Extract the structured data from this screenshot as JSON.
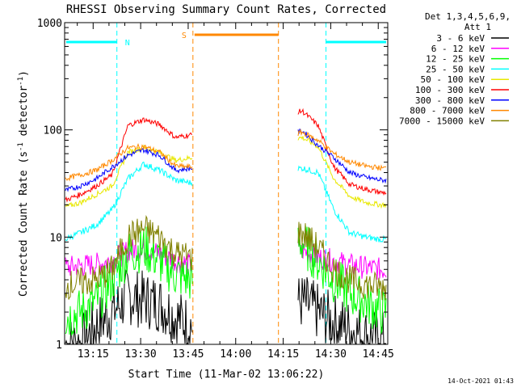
{
  "chart_data": {
    "type": "line",
    "title": "RHESSI Observing Summary Count Rates, Corrected",
    "xlabel": "Start Time (11-Mar-02 13:06:22)",
    "ylabel": "Corrected Count Rate (s⁻¹ detector⁻¹)",
    "ylabel_base": "Corrected Count Rate (s",
    "ylabel_mid": " detector",
    "ylabel_end": ")",
    "ylabel_sup": "-1",
    "yscale": "log",
    "xlim_min": [
      786,
      888
    ],
    "ylim": [
      1,
      1000
    ],
    "x_ticks": [
      {
        "label": "13:15",
        "min": 795
      },
      {
        "label": "13:30",
        "min": 810
      },
      {
        "label": "13:45",
        "min": 825
      },
      {
        "label": "14:00",
        "min": 840
      },
      {
        "label": "14:15",
        "min": 855
      },
      {
        "label": "14:30",
        "min": 870
      },
      {
        "label": "14:45",
        "min": 885
      }
    ],
    "y_ticks": [
      {
        "label": "1",
        "value": 1
      },
      {
        "label": "10",
        "value": 10
      },
      {
        "label": "100",
        "value": 100
      },
      {
        "label": "1000",
        "value": 1000
      }
    ],
    "legend_header": [
      "Det 1,3,4,5,6,9,",
      "Att 1"
    ],
    "series": [
      {
        "name": "3 - 6 keV",
        "color": "#000000",
        "x": [
          786,
          791,
          796,
          801,
          806,
          811,
          816,
          821,
          826,
          861,
          866,
          871,
          876,
          881,
          886
        ],
        "values": [
          1.0,
          1.0,
          1.5,
          2.0,
          2.8,
          2.6,
          2.4,
          1.8,
          1.5,
          2.5,
          2.0,
          1.6,
          1.4,
          1.2,
          1.1
        ]
      },
      {
        "name": "6 - 12 keV",
        "color": "#ff00ff",
        "x": [
          786,
          791,
          796,
          801,
          806,
          811,
          816,
          821,
          826,
          861,
          866,
          871,
          876,
          881,
          886
        ],
        "values": [
          5.2,
          5.4,
          5.6,
          6.0,
          7.5,
          7.8,
          7.0,
          6.0,
          5.5,
          7.5,
          6.5,
          6.0,
          5.5,
          5.2,
          5.0
        ]
      },
      {
        "name": "12 - 25 keV",
        "color": "#00ff00",
        "x": [
          786,
          791,
          796,
          801,
          806,
          811,
          816,
          821,
          826,
          861,
          866,
          871,
          876,
          881,
          886
        ],
        "values": [
          1.8,
          2.0,
          2.5,
          4.0,
          7.0,
          8.0,
          6.0,
          4.5,
          4.0,
          9.0,
          6.0,
          4.0,
          3.0,
          2.5,
          2.0
        ]
      },
      {
        "name": "25 - 50 keV",
        "color": "#00ffff",
        "x": [
          786,
          791,
          796,
          801,
          806,
          811,
          816,
          821,
          826,
          861,
          866,
          871,
          876,
          881,
          886
        ],
        "values": [
          9.5,
          11,
          13,
          18,
          35,
          48,
          42,
          34,
          32,
          44,
          40,
          18,
          11,
          10,
          9.5
        ]
      },
      {
        "name": "50 - 100 keV",
        "color": "#e8e800",
        "x": [
          786,
          791,
          796,
          801,
          806,
          811,
          816,
          821,
          826,
          861,
          866,
          871,
          876,
          881,
          886
        ],
        "values": [
          19,
          21,
          25,
          30,
          62,
          68,
          62,
          52,
          55,
          85,
          70,
          35,
          24,
          21,
          20
        ]
      },
      {
        "name": "100 - 300 keV",
        "color": "#ff0000",
        "x": [
          786,
          791,
          796,
          801,
          806,
          811,
          816,
          821,
          826,
          861,
          866,
          871,
          876,
          881,
          886
        ],
        "values": [
          22,
          25,
          30,
          38,
          110,
          125,
          112,
          85,
          90,
          150,
          110,
          45,
          31,
          28,
          26
        ]
      },
      {
        "name": "300 - 800 keV",
        "color": "#0000ff",
        "x": [
          786,
          791,
          796,
          801,
          806,
          811,
          816,
          821,
          826,
          861,
          866,
          871,
          876,
          881,
          886
        ],
        "values": [
          27,
          30,
          35,
          45,
          58,
          65,
          58,
          42,
          44,
          98,
          72,
          55,
          40,
          36,
          34
        ]
      },
      {
        "name": "800 - 7000 keV",
        "color": "#ff8800",
        "x": [
          786,
          791,
          796,
          801,
          806,
          811,
          816,
          821,
          826,
          861,
          866,
          871,
          876,
          881,
          886
        ],
        "values": [
          35,
          38,
          42,
          52,
          68,
          70,
          62,
          46,
          45,
          95,
          80,
          60,
          50,
          46,
          44
        ]
      },
      {
        "name": "7000 - 15000 keV",
        "color": "#808000",
        "x": [
          786,
          791,
          796,
          801,
          806,
          811,
          816,
          821,
          826,
          861,
          866,
          871,
          876,
          881,
          886
        ],
        "values": [
          3.5,
          3.8,
          4.0,
          5.0,
          10,
          12,
          10,
          7.0,
          6.5,
          11,
          8.0,
          5.0,
          4.0,
          3.6,
          3.4
        ]
      }
    ],
    "annotations": [
      {
        "label": "N",
        "color": "#00ffff",
        "start": 802.5,
        "end": 868.5,
        "flag_level": 660
      },
      {
        "label": "S",
        "color": "#ff8800",
        "start": 826.5,
        "end": 853.5,
        "flag_level": 770
      }
    ],
    "grid": false,
    "legend_position": "right"
  },
  "footer": {
    "timestamp": "14-Oct-2021 01:43"
  }
}
